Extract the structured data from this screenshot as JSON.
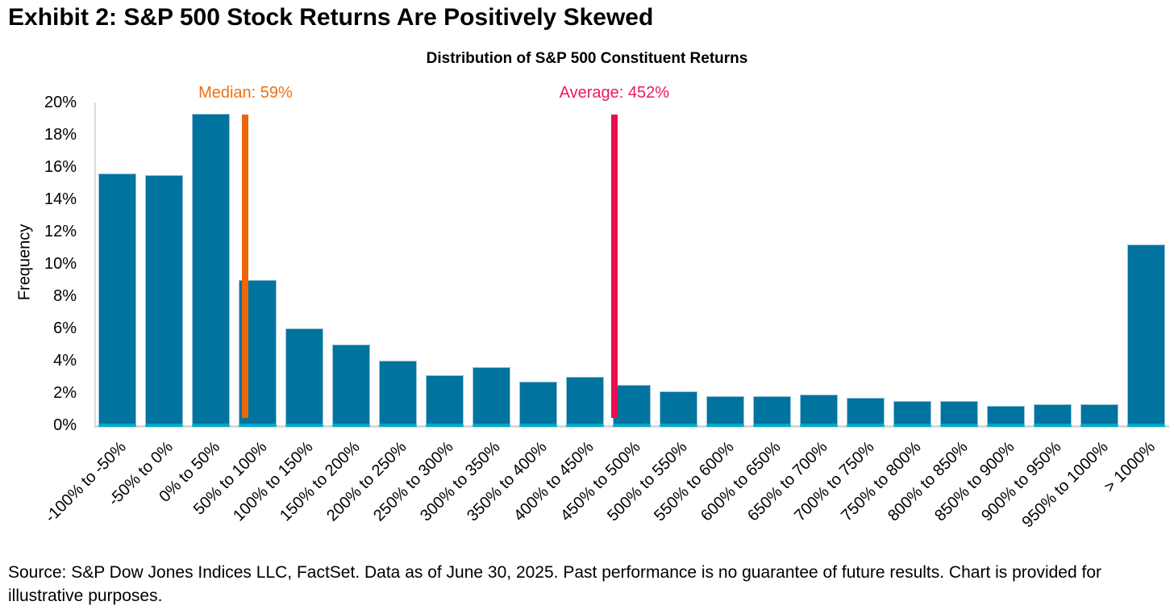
{
  "header": {
    "title": "Exhibit 2: S&P 500 Stock Returns Are Positively Skewed"
  },
  "chart_data": {
    "type": "bar",
    "title": "Distribution of S&P 500 Constituent Returns",
    "xlabel": "",
    "ylabel": "Frequency",
    "ylim": [
      0,
      20
    ],
    "ytick_step": 2,
    "ytick_labels": [
      "0%",
      "2%",
      "4%",
      "6%",
      "8%",
      "10%",
      "12%",
      "14%",
      "16%",
      "18%",
      "20%"
    ],
    "grid": false,
    "legend": "none",
    "bin_start": -100,
    "bin_width": 50,
    "categories": [
      "-100% to -50%",
      "-50% to 0%",
      "0% to 50%",
      "50% to 100%",
      "100% to 150%",
      "150% to 200%",
      "200% to 250%",
      "250% to 300%",
      "300% to 350%",
      "350% to 400%",
      "400% to 450%",
      "450% to 500%",
      "500% to 550%",
      "550% to 600%",
      "600% to 650%",
      "650% to 700%",
      "700% to 750%",
      "750% to 800%",
      "800% to 850%",
      "850% to 900%",
      "900% to 950%",
      "950% to 1000%",
      "> 1000%"
    ],
    "values": [
      15.6,
      15.5,
      19.3,
      9.0,
      6.0,
      5.0,
      4.0,
      3.1,
      3.6,
      2.7,
      3.0,
      2.5,
      2.1,
      1.8,
      1.8,
      1.9,
      1.7,
      1.5,
      1.5,
      1.2,
      1.3,
      1.3,
      11.2
    ],
    "annotations": [
      {
        "name": "median",
        "label": "Median: 59%",
        "value_pct": 59,
        "text_color": "#F2700D",
        "line_color": "#EE660B"
      },
      {
        "name": "average",
        "label": "Average: 452%",
        "value_pct": 452,
        "text_color": "#EC1A55",
        "line_color": "#E60E4F"
      }
    ],
    "colors": {
      "bar_fill": "#00739E",
      "bar_edge": "#9CC2DB",
      "bar_base": "#00A8C8",
      "axis": "#D9D9D9"
    }
  },
  "footer": {
    "source": "Source: S&P Dow Jones Indices LLC, FactSet. Data as of June 30, 2025. Past performance is no guarantee of future results. Chart is provided for illustrative purposes."
  }
}
